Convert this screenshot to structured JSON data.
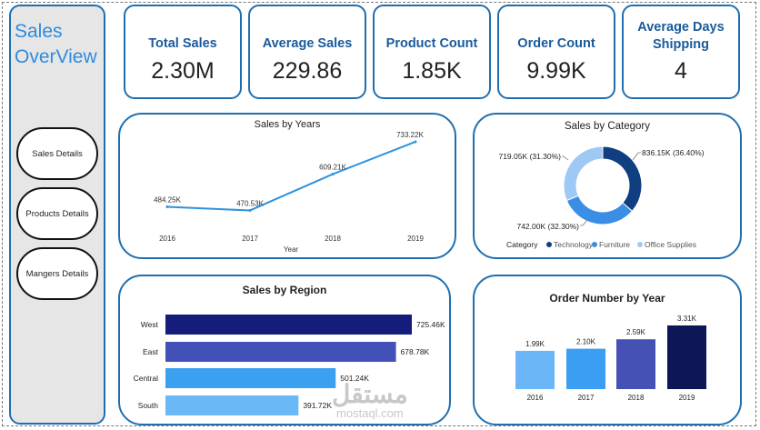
{
  "sidebar": {
    "title_line1": "Sales",
    "title_line2": "OverView",
    "buttons": [
      "Sales Details",
      "Products Details",
      "Mangers Details"
    ]
  },
  "kpis": [
    {
      "label": "Total Sales",
      "value": "2.30M"
    },
    {
      "label": "Average Sales",
      "value": "229.86"
    },
    {
      "label": "Product Count",
      "value": "1.85K"
    },
    {
      "label": "Order Count",
      "value": "9.99K"
    },
    {
      "label_line1": "Average Days",
      "label_line2": "Shipping",
      "value": "4"
    }
  ],
  "colors": {
    "border": "#1f6fb0",
    "line": "#2d93e0",
    "technology": "#0f3f80",
    "furniture": "#3a8ee6",
    "office_supplies": "#9ec9f5",
    "region_west": "#141e7a",
    "region_east": "#4250b8",
    "region_central": "#3aa0f0",
    "region_south": "#6ab8f5",
    "order_2016": "#6bb6f7",
    "order_2017": "#3b9ef2",
    "order_2018": "#4551b5",
    "order_2019": "#0d1656"
  },
  "charts": {
    "sales_by_years": {
      "title": "Sales by Years",
      "xlabel": "Year"
    },
    "sales_by_category": {
      "title": "Sales by Category",
      "legend_title": "Category"
    },
    "sales_by_region": {
      "title": "Sales by Region"
    },
    "order_number_by_year": {
      "title": "Order Number by Year"
    }
  },
  "chart_data": [
    {
      "type": "line",
      "title": "Sales by Years",
      "xlabel": "Year",
      "ylabel": "",
      "x": [
        "2016",
        "2017",
        "2018",
        "2019"
      ],
      "values": [
        484.25,
        470.53,
        609.21,
        733.22
      ],
      "data_labels": [
        "484.25K",
        "470.53K",
        "609.21K",
        "733.22K"
      ],
      "grid": false
    },
    {
      "type": "pie",
      "title": "Sales by Category",
      "legend_title": "Category",
      "legend_position": "bottom",
      "categories": [
        "Technology",
        "Furniture",
        "Office Supplies"
      ],
      "values": [
        836.15,
        742.0,
        719.05
      ],
      "percents": [
        36.4,
        32.3,
        31.3
      ],
      "data_labels": [
        "836.15K (36.40%)",
        "742.00K (32.30%)",
        "719.05K (31.30%)"
      ]
    },
    {
      "type": "bar",
      "orientation": "horizontal",
      "title": "Sales by Region",
      "categories": [
        "West",
        "East",
        "Central",
        "South"
      ],
      "values": [
        725.46,
        678.78,
        501.24,
        391.72
      ],
      "data_labels": [
        "725.46K",
        "678.78K",
        "501.24K",
        "391.72K"
      ]
    },
    {
      "type": "bar",
      "title": "Order Number by Year",
      "categories": [
        "2016",
        "2017",
        "2018",
        "2019"
      ],
      "values": [
        1.99,
        2.1,
        2.59,
        3.31
      ],
      "data_labels": [
        "1.99K",
        "2.10K",
        "2.59K",
        "3.31K"
      ]
    }
  ],
  "watermark": {
    "arabic": "مستقل",
    "latin": "mostaql.com"
  }
}
